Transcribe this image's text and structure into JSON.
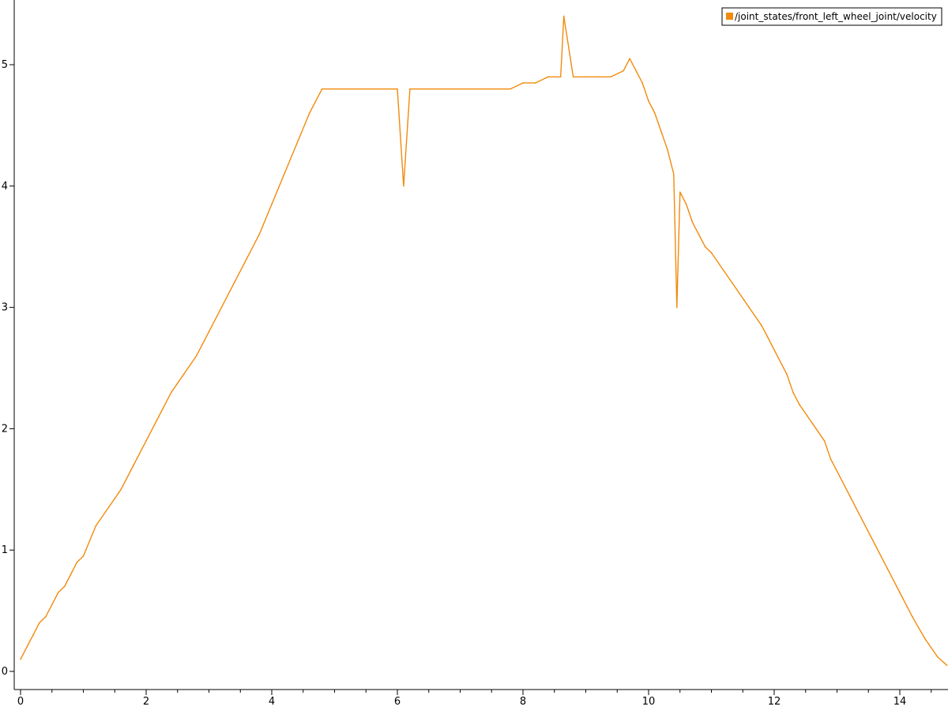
{
  "colors": {
    "background": "#ffffff",
    "axis": "#000000",
    "series": "#f28a0c"
  },
  "chart_data": {
    "type": "line",
    "title": "",
    "xlabel": "",
    "ylabel": "",
    "xlim": [
      0,
      14.75
    ],
    "ylim": [
      -0.12,
      5.45
    ],
    "grid": false,
    "legend_position": "top-right",
    "x_ticks": [
      0,
      2,
      4,
      6,
      8,
      10,
      12,
      14
    ],
    "x_tick_labels": [
      "0",
      "2",
      "4",
      "6",
      "8",
      "10",
      "12",
      "14"
    ],
    "x_minor_step": 0.5,
    "y_ticks": [
      0,
      1,
      2,
      3,
      4,
      5
    ],
    "y_tick_labels": [
      "0",
      "1",
      "2",
      "3",
      "4",
      "5"
    ],
    "series": [
      {
        "name": "/joint_states/front_left_wheel_joint/velocity",
        "color": "#f28a0c",
        "x": [
          0,
          0.1,
          0.2,
          0.3,
          0.4,
          0.5,
          0.6,
          0.7,
          0.8,
          0.9,
          1.0,
          1.2,
          1.4,
          1.6,
          1.8,
          2.0,
          2.2,
          2.4,
          2.6,
          2.8,
          3.0,
          3.2,
          3.4,
          3.6,
          3.8,
          4.0,
          4.2,
          4.4,
          4.6,
          4.8,
          5.0,
          5.2,
          5.4,
          5.6,
          5.8,
          6.0,
          6.1,
          6.2,
          6.4,
          6.6,
          6.8,
          7.0,
          7.2,
          7.4,
          7.6,
          7.8,
          8.0,
          8.2,
          8.4,
          8.6,
          8.65,
          8.8,
          9.0,
          9.2,
          9.4,
          9.6,
          9.7,
          9.8,
          9.9,
          10.0,
          10.1,
          10.2,
          10.3,
          10.4,
          10.45,
          10.5,
          10.6,
          10.7,
          10.8,
          10.9,
          11.0,
          11.2,
          11.4,
          11.6,
          11.8,
          11.9,
          12.0,
          12.2,
          12.3,
          12.4,
          12.6,
          12.8,
          12.9,
          13.0,
          13.2,
          13.4,
          13.6,
          13.8,
          14.0,
          14.2,
          14.4,
          14.6,
          14.75
        ],
        "y": [
          0.1,
          0.2,
          0.3,
          0.4,
          0.45,
          0.55,
          0.65,
          0.7,
          0.8,
          0.9,
          0.95,
          1.2,
          1.35,
          1.5,
          1.7,
          1.9,
          2.1,
          2.3,
          2.45,
          2.6,
          2.8,
          3.0,
          3.2,
          3.4,
          3.6,
          3.85,
          4.1,
          4.35,
          4.6,
          4.8,
          4.8,
          4.8,
          4.8,
          4.8,
          4.8,
          4.8,
          4.0,
          4.8,
          4.8,
          4.8,
          4.8,
          4.8,
          4.8,
          4.8,
          4.8,
          4.8,
          4.85,
          4.85,
          4.9,
          4.9,
          5.4,
          4.9,
          4.9,
          4.9,
          4.9,
          4.95,
          5.05,
          4.95,
          4.85,
          4.7,
          4.6,
          4.45,
          4.3,
          4.1,
          3.0,
          3.95,
          3.85,
          3.7,
          3.6,
          3.5,
          3.45,
          3.3,
          3.15,
          3.0,
          2.85,
          2.75,
          2.65,
          2.45,
          2.3,
          2.2,
          2.05,
          1.9,
          1.75,
          1.65,
          1.45,
          1.25,
          1.05,
          0.85,
          0.65,
          0.45,
          0.27,
          0.12,
          0.05
        ]
      }
    ]
  }
}
